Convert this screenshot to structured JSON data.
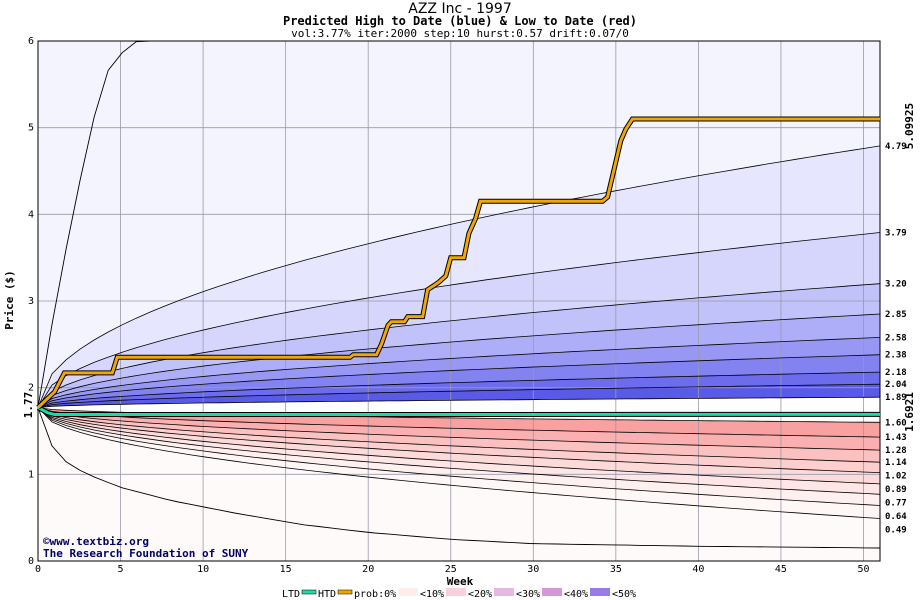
{
  "chart_data": {
    "type": "area",
    "title": "AZZ Inc - 1997",
    "subtitle": "Predicted High to Date (blue) &  Low to Date (red)",
    "params": "vol:3.77% iter:2000 step:10 hurst:0.57 drift:0.07/0",
    "xlabel": "Week",
    "ylabel": "Price ($)",
    "xlim": [
      0,
      51
    ],
    "ylim": [
      0,
      6
    ],
    "xticks": [
      0,
      5,
      10,
      15,
      20,
      25,
      30,
      35,
      40,
      45,
      50
    ],
    "yticks": [
      0,
      1,
      2,
      3,
      4,
      5,
      6
    ],
    "grid": true,
    "start_value": 1.77,
    "start_label": "1.77",
    "high_to_date_end": 5.09925,
    "high_to_date_label": "5.09925",
    "low_to_date_end": 1.6921,
    "low_to_date_label": "1.6921",
    "quantile_curves": [
      {
        "end": 4.79,
        "label": "4.79"
      },
      {
        "end": 3.79,
        "label": "3.79"
      },
      {
        "end": 3.2,
        "label": "3.20"
      },
      {
        "end": 2.85,
        "label": "2.85"
      },
      {
        "end": 2.58,
        "label": "2.58"
      },
      {
        "end": 2.38,
        "label": "2.38"
      },
      {
        "end": 2.18,
        "label": "2.18"
      },
      {
        "end": 2.04,
        "label": "2.04"
      },
      {
        "end": 1.89,
        "label": "1.89"
      },
      {
        "end": 1.6,
        "label": "1.60"
      },
      {
        "end": 1.43,
        "label": "1.43"
      },
      {
        "end": 1.28,
        "label": "1.28"
      },
      {
        "end": 1.14,
        "label": "1.14"
      },
      {
        "end": 1.02,
        "label": "1.02"
      },
      {
        "end": 0.89,
        "label": "0.89"
      },
      {
        "end": 0.77,
        "label": "0.77"
      },
      {
        "end": 0.64,
        "label": "0.64"
      },
      {
        "end": 0.49,
        "label": "0.49"
      }
    ],
    "high_band_fills": [
      "#f4f4ff",
      "#e6e6ff",
      "#d6d6fc",
      "#c2c2fa",
      "#aeaef8",
      "#9898f4",
      "#8282f0",
      "#6c6cec",
      "#5a5ae8"
    ],
    "low_band_fills": [
      "#f9a0a0",
      "#fab0b0",
      "#fbc0c0",
      "#fccece",
      "#fddada",
      "#fee6e6",
      "#fff0f0",
      "#fff6f6",
      "#fffafa"
    ],
    "outer_upper_curve_x": [
      0,
      1,
      2,
      3,
      4,
      5,
      6,
      8,
      10
    ],
    "outer_upper_curve_y": [
      1.77,
      2.9,
      3.9,
      4.8,
      5.6,
      5.85,
      6.0,
      6.3,
      6.5
    ],
    "outer_lower_curve_x": [
      0,
      1,
      2,
      3,
      5,
      8,
      12,
      16,
      20,
      25,
      30,
      40,
      51
    ],
    "outer_lower_curve_y": [
      1.77,
      1.25,
      1.1,
      1.0,
      0.85,
      0.7,
      0.55,
      0.42,
      0.33,
      0.25,
      0.2,
      0.17,
      0.15
    ],
    "high_to_date_x": [
      0,
      1.0,
      1.6,
      4.5,
      4.8,
      18.9,
      19.1,
      20.5,
      20.8,
      21.2,
      21.4,
      22.2,
      22.4,
      23.3,
      23.6,
      24.0,
      24.3,
      24.7,
      25.0,
      25.8,
      26.1,
      26.5,
      26.8,
      34.2,
      34.5,
      35.3,
      35.6,
      36.0,
      51
    ],
    "high_to_date_y": [
      1.77,
      1.95,
      2.17,
      2.17,
      2.35,
      2.35,
      2.38,
      2.38,
      2.5,
      2.72,
      2.76,
      2.76,
      2.82,
      2.82,
      3.13,
      3.18,
      3.22,
      3.29,
      3.5,
      3.5,
      3.78,
      3.95,
      4.15,
      4.15,
      4.2,
      4.85,
      4.98,
      5.1,
      5.1
    ],
    "low_to_date_x": [
      0,
      0.3,
      0.6,
      1.0,
      51
    ],
    "low_to_date_y": [
      1.77,
      1.74,
      1.71,
      1.69,
      1.6921
    ],
    "credit_line1": "©www.textbiz.org",
    "credit_line2": "The Research Foundation of SUNY",
    "legend": {
      "ltd_label": "LTD",
      "htd_label": "HTD",
      "prob_label": "prob:0%",
      "items": [
        {
          "label": "<10%",
          "color": "#ffecec"
        },
        {
          "label": "<20%",
          "color": "#f8d0e0"
        },
        {
          "label": "<30%",
          "color": "#e8b8e4"
        },
        {
          "label": "<40%",
          "color": "#d49ad8"
        },
        {
          "label": "<50%",
          "color": "#9a7ae8"
        }
      ]
    },
    "colors": {
      "high_to_date": "#f0a800",
      "low_to_date": "#20d8a8",
      "start_label": "#008040",
      "high_label": "#b08800",
      "low_label": "#008040"
    }
  }
}
